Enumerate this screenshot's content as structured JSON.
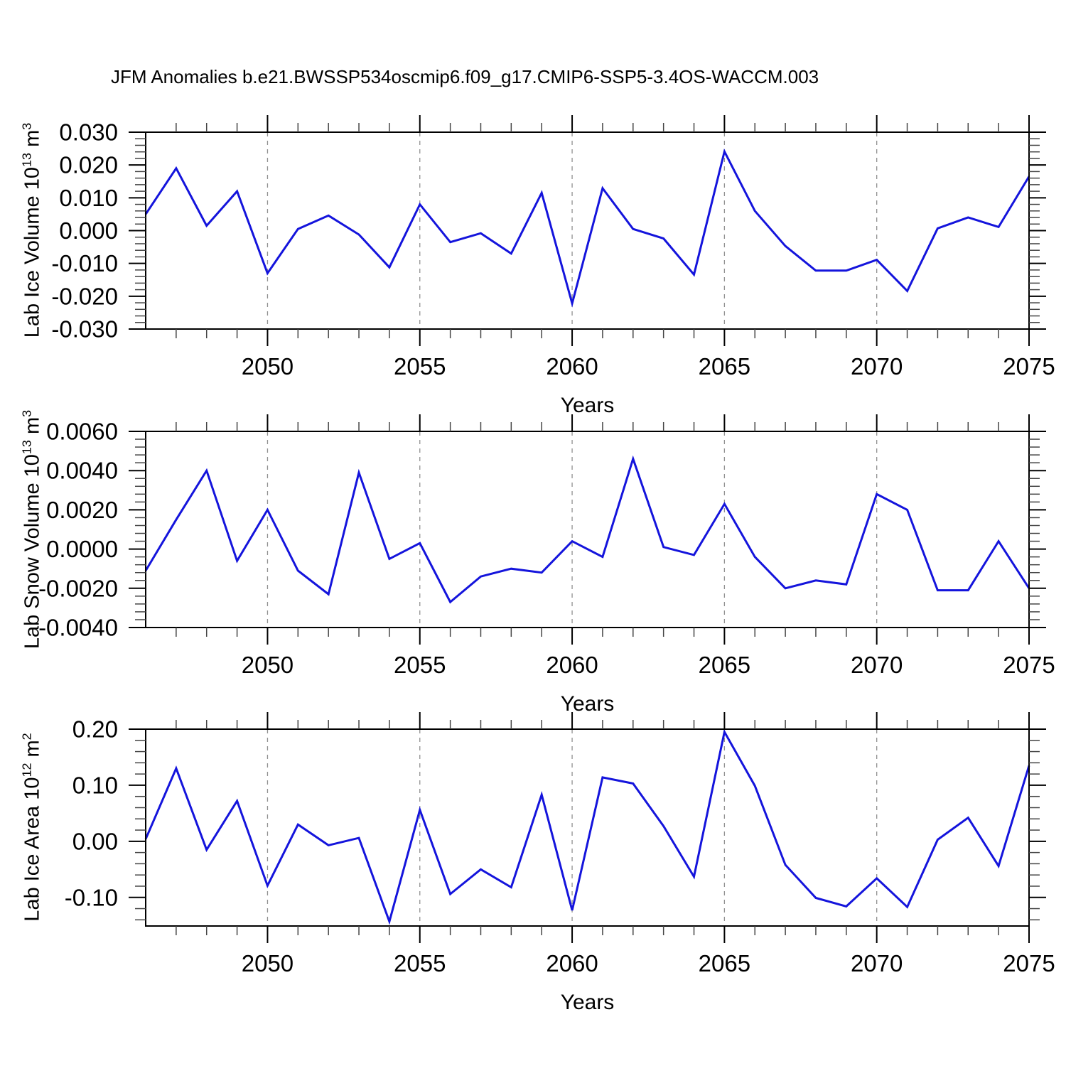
{
  "title": "JFM Anomalies b.e21.BWSSP534oscmip6.f09_g17.CMIP6-SSP5-3.4OS-WACCM.003",
  "line_color": "#1414dc",
  "grid_color": "#909090",
  "chart_data": [
    {
      "type": "line",
      "name": "lab-ice-volume",
      "ylabel_parts": {
        "prefix": "Lab Ice Volume 10",
        "sup": "13",
        "mid": " m",
        "sup2": "3"
      },
      "xlabel": "Years",
      "x": [
        2046,
        2047,
        2048,
        2049,
        2050,
        2051,
        2052,
        2053,
        2054,
        2055,
        2056,
        2057,
        2058,
        2059,
        2060,
        2061,
        2062,
        2063,
        2064,
        2065,
        2066,
        2067,
        2068,
        2069,
        2070,
        2071,
        2072,
        2073,
        2074,
        2075
      ],
      "values": [
        0.005,
        0.019,
        0.0015,
        0.012,
        -0.013,
        0.0005,
        0.0046,
        -0.0012,
        -0.0112,
        0.008,
        -0.0035,
        -0.0008,
        -0.007,
        0.0115,
        -0.0222,
        0.0129,
        0.0005,
        -0.0024,
        -0.0134,
        0.0241,
        0.006,
        -0.0047,
        -0.0122,
        -0.0122,
        -0.0089,
        -0.0184,
        0.0007,
        0.004,
        0.0011,
        0.0165
      ],
      "xlim": [
        2046,
        2075
      ],
      "ylim": [
        -0.03,
        0.03
      ],
      "yticks": [
        0.03,
        0.02,
        0.01,
        0,
        -0.01,
        -0.02,
        -0.03
      ],
      "ytick_labels": [
        "0.030",
        "0.020",
        "0.010",
        "0.000",
        "-0.010",
        "-0.020",
        "-0.030"
      ],
      "yminor_step": 0.002,
      "xticks": [
        2050,
        2055,
        2060,
        2065,
        2070,
        2075
      ],
      "xtick_labels": [
        "2050",
        "2055",
        "2060",
        "2065",
        "2070",
        "2075"
      ],
      "grid_x": [
        2050,
        2055,
        2060,
        2065,
        2070
      ],
      "grid_style": "vertical-dashed"
    },
    {
      "type": "line",
      "name": "lab-snow-volume",
      "ylabel_parts": {
        "prefix": "Lab Snow Volume 10",
        "sup": "13",
        "mid": " m",
        "sup2": "3"
      },
      "xlabel": "Years",
      "x": [
        2046,
        2047,
        2048,
        2049,
        2050,
        2051,
        2052,
        2053,
        2054,
        2055,
        2056,
        2057,
        2058,
        2059,
        2060,
        2061,
        2062,
        2063,
        2064,
        2065,
        2066,
        2067,
        2068,
        2069,
        2070,
        2071,
        2072,
        2073,
        2074,
        2075
      ],
      "values": [
        -0.0011,
        0.0015,
        0.004,
        -0.0006,
        0.002,
        -0.0011,
        -0.0023,
        0.0039,
        -0.0005,
        0.0003,
        -0.0027,
        -0.0014,
        -0.001,
        -0.0012,
        0.0004,
        -0.0004,
        0.0046,
        0.0001,
        -0.0003,
        0.0023,
        -0.0004,
        -0.002,
        -0.0016,
        -0.0018,
        0.0028,
        0.002,
        -0.0021,
        -0.0021,
        0.0004,
        -0.002
      ],
      "xlim": [
        2046,
        2075
      ],
      "ylim": [
        -0.004,
        0.006
      ],
      "yticks": [
        0.006,
        0.004,
        0.002,
        0,
        -0.002,
        -0.004
      ],
      "ytick_labels": [
        "0.0060",
        "0.0040",
        "0.0020",
        "0.0000",
        "-0.0020",
        "-0.0040"
      ],
      "yminor_step": 0.0004,
      "xticks": [
        2050,
        2055,
        2060,
        2065,
        2070,
        2075
      ],
      "xtick_labels": [
        "2050",
        "2055",
        "2060",
        "2065",
        "2070",
        "2075"
      ],
      "grid_x": [
        2050,
        2055,
        2060,
        2065,
        2070
      ],
      "grid_style": "vertical-dashed"
    },
    {
      "type": "line",
      "name": "lab-ice-area",
      "ylabel_parts": {
        "prefix": "Lab Ice Area 10",
        "sup": "12",
        "mid": " m",
        "sup2": "2"
      },
      "xlabel": "Years",
      "x": [
        2046,
        2047,
        2048,
        2049,
        2050,
        2051,
        2052,
        2053,
        2054,
        2055,
        2056,
        2057,
        2058,
        2059,
        2060,
        2061,
        2062,
        2063,
        2064,
        2065,
        2066,
        2067,
        2068,
        2069,
        2070,
        2071,
        2072,
        2073,
        2074,
        2075
      ],
      "values": [
        0.004,
        0.13,
        -0.015,
        0.072,
        -0.079,
        0.03,
        -0.007,
        0.006,
        -0.143,
        0.056,
        -0.094,
        -0.05,
        -0.082,
        0.083,
        -0.123,
        0.114,
        0.103,
        0.027,
        -0.063,
        0.195,
        0.099,
        -0.042,
        -0.101,
        -0.116,
        -0.066,
        -0.117,
        0.003,
        0.042,
        -0.044,
        0.135
      ],
      "xlim": [
        2046,
        2075
      ],
      "ylim": [
        -0.151,
        0.2
      ],
      "yticks": [
        0.2,
        0.1,
        0,
        -0.1
      ],
      "ytick_labels": [
        "0.20",
        "0.10",
        "0.00",
        "-0.10"
      ],
      "yminor_step": 0.02,
      "xticks": [
        2050,
        2055,
        2060,
        2065,
        2070,
        2075
      ],
      "xtick_labels": [
        "2050",
        "2055",
        "2060",
        "2065",
        "2070",
        "2075"
      ],
      "grid_x": [
        2050,
        2055,
        2060,
        2065,
        2070
      ],
      "grid_style": "vertical-dashed"
    }
  ]
}
